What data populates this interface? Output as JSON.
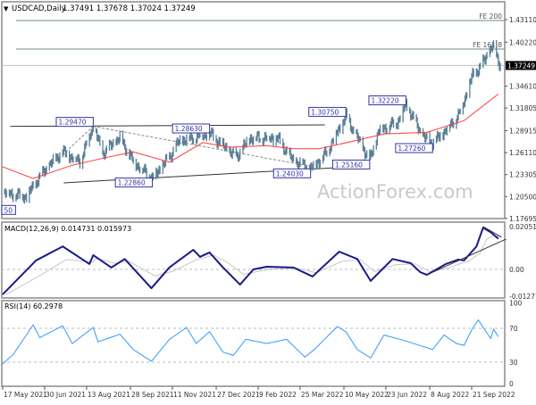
{
  "chart_data": [
    {
      "type": "ohlc",
      "panel": "price",
      "title": "USDCAD,Daily",
      "ohlc_readout": [
        "1.37491",
        "1.37678",
        "1.37024",
        "1.37249"
      ],
      "current_price": "1.37249",
      "yticks": [
        "1.43110",
        "1.40220",
        "1.34610",
        "1.31805",
        "1.28915",
        "1.26110",
        "1.23305",
        "1.20500",
        "1.17695"
      ],
      "ylim": [
        1.17695,
        1.4311
      ],
      "close_path": [
        [
          "2021-05-19",
          1.21
        ],
        [
          "2021-06-11",
          1.205
        ],
        [
          "2021-06-25",
          1.23
        ],
        [
          "2021-07-05",
          1.245
        ],
        [
          "2021-07-19",
          1.262
        ],
        [
          "2021-08-06",
          1.25
        ],
        [
          "2021-08-20",
          1.2947
        ],
        [
          "2021-08-30",
          1.26
        ],
        [
          "2021-09-17",
          1.28
        ],
        [
          "2021-10-01",
          1.25
        ],
        [
          "2021-10-21",
          1.2286
        ],
        [
          "2021-11-08",
          1.255
        ],
        [
          "2021-11-18",
          1.275
        ],
        [
          "2021-12-20",
          1.2863
        ],
        [
          "2022-01-03",
          1.27
        ],
        [
          "2022-01-17",
          1.255
        ],
        [
          "2022-02-01",
          1.28
        ],
        [
          "2022-03-01",
          1.28
        ],
        [
          "2022-03-18",
          1.25
        ],
        [
          "2022-04-05",
          1.2403
        ],
        [
          "2022-04-21",
          1.26
        ],
        [
          "2022-05-12",
          1.3075
        ],
        [
          "2022-05-24",
          1.28
        ],
        [
          "2022-06-06",
          1.2516
        ],
        [
          "2022-06-16",
          1.29
        ],
        [
          "2022-07-05",
          1.3
        ],
        [
          "2022-07-14",
          1.3222
        ],
        [
          "2022-08-02",
          1.28
        ],
        [
          "2022-08-11",
          1.2726
        ],
        [
          "2022-08-25",
          1.29
        ],
        [
          "2022-09-08",
          1.31
        ],
        [
          "2022-09-22",
          1.36
        ],
        [
          "2022-09-30",
          1.37
        ],
        [
          "2022-10-13",
          1.3975
        ],
        [
          "2022-10-21",
          1.3725
        ]
      ],
      "moving_average": [
        [
          "2021-05-17",
          1.243
        ],
        [
          "2021-06-18",
          1.228
        ],
        [
          "2021-07-29",
          1.245
        ],
        [
          "2021-09-03",
          1.255
        ],
        [
          "2021-10-01",
          1.262
        ],
        [
          "2021-11-08",
          1.249
        ],
        [
          "2021-12-13",
          1.274
        ],
        [
          "2022-01-10",
          1.268
        ],
        [
          "2022-02-18",
          1.27
        ],
        [
          "2022-03-18",
          1.266
        ],
        [
          "2022-04-14",
          1.266
        ],
        [
          "2022-05-24",
          1.277
        ],
        [
          "2022-06-21",
          1.285
        ],
        [
          "2022-08-05",
          1.287
        ],
        [
          "2022-09-13",
          1.302
        ],
        [
          "2022-10-19",
          1.336
        ]
      ],
      "annotations": [
        {
          "text": "1.29470",
          "date": "2021-08-20",
          "price": 1.2947,
          "pos": "above-left"
        },
        {
          "text": "1.28630",
          "date": "2021-12-20",
          "price": 1.2863,
          "pos": "above-left"
        },
        {
          "text": "1.22860",
          "date": "2021-10-21",
          "price": 1.2286,
          "pos": "below-left"
        },
        {
          "text": "1.24030",
          "date": "2022-04-05",
          "price": 1.2403,
          "pos": "below-left"
        },
        {
          "text": "1.30750",
          "date": "2022-05-12",
          "price": 1.3075,
          "pos": "above-left"
        },
        {
          "text": "1.25160",
          "date": "2022-06-06",
          "price": 1.2516,
          "pos": "below-left"
        },
        {
          "text": "1.32220",
          "date": "2022-07-14",
          "price": 1.3222,
          "pos": "above-left"
        },
        {
          "text": "1.27260",
          "date": "2022-08-11",
          "price": 1.2726,
          "pos": "below-left"
        },
        {
          "text": "50",
          "date": "2021-05-17",
          "price": 1.205,
          "pos": "edge"
        }
      ],
      "levels": [
        {
          "label": "FE 200",
          "price": 1.43
        },
        {
          "label": "FE 161.8",
          "price": 1.3935
        }
      ],
      "trendlines": [
        {
          "style": "solid",
          "from": [
            "2021-05-25",
            1.2947
          ],
          "to": [
            "2022-04-20",
            1.2965
          ]
        },
        {
          "style": "solid",
          "from": [
            "2021-07-20",
            1.2225
          ],
          "to": [
            "2022-04-30",
            1.2417
          ]
        },
        {
          "style": "dashed",
          "from": [
            "2021-07-22",
            1.262
          ],
          "to": [
            "2021-08-20",
            1.2947
          ]
        },
        {
          "style": "dashed",
          "from": [
            "2021-08-20",
            1.2947
          ],
          "to": [
            "2022-04-08",
            1.243
          ]
        }
      ],
      "watermark": "ActionForex.com"
    },
    {
      "type": "line",
      "panel": "macd",
      "title": "MACD(12,26,9) 0.014731 0.015973",
      "yticks": [
        "0.020518",
        "0.00",
        "-0.012771"
      ],
      "ylim": [
        -0.012771,
        0.020518
      ],
      "macd": [
        [
          "2021-05-17",
          -0.012
        ],
        [
          "2021-06-21",
          0.0043
        ],
        [
          "2021-07-19",
          0.011
        ],
        [
          "2021-08-16",
          0.0026
        ],
        [
          "2021-08-20",
          0.0068
        ],
        [
          "2021-09-08",
          0.0009
        ],
        [
          "2021-09-22",
          0.005
        ],
        [
          "2021-10-20",
          -0.009
        ],
        [
          "2021-11-08",
          0.001
        ],
        [
          "2021-12-03",
          0.0094
        ],
        [
          "2021-12-10",
          0.006
        ],
        [
          "2021-12-20",
          0.0081
        ],
        [
          "2022-01-03",
          0.001
        ],
        [
          "2022-01-21",
          -0.0073
        ],
        [
          "2022-02-04",
          0.0
        ],
        [
          "2022-02-18",
          0.0013
        ],
        [
          "2022-03-18",
          0.0009
        ],
        [
          "2022-04-07",
          -0.0034
        ],
        [
          "2022-05-05",
          0.0085
        ],
        [
          "2022-05-24",
          0.005
        ],
        [
          "2022-06-07",
          -0.0055
        ],
        [
          "2022-06-30",
          0.005
        ],
        [
          "2022-07-19",
          0.003
        ],
        [
          "2022-07-29",
          -0.0013
        ],
        [
          "2022-08-05",
          -0.0026
        ],
        [
          "2022-08-25",
          0.0026
        ],
        [
          "2022-09-07",
          0.0047
        ],
        [
          "2022-09-13",
          0.0043
        ],
        [
          "2022-09-26",
          0.011
        ],
        [
          "2022-10-03",
          0.02
        ],
        [
          "2022-10-11",
          0.0178
        ],
        [
          "2022-10-19",
          0.0147
        ]
      ],
      "trendlines": [
        {
          "from": [
            "2022-08-05",
            -0.0026
          ],
          "to": [
            "2022-10-27",
            0.0145
          ]
        },
        {
          "from": [
            "2022-10-03",
            0.0205
          ],
          "to": [
            "2022-10-22",
            0.0155
          ]
        }
      ]
    },
    {
      "type": "line",
      "panel": "rsi",
      "title": "RSI(14) 60.2978",
      "yticks": [
        "100",
        "70",
        "30",
        "0"
      ],
      "ylim": [
        0,
        100
      ],
      "levels": [
        70,
        30
      ],
      "rsi": [
        [
          "2021-05-17",
          28
        ],
        [
          "2021-05-28",
          39
        ],
        [
          "2021-06-18",
          74
        ],
        [
          "2021-06-25",
          59
        ],
        [
          "2021-07-19",
          73
        ],
        [
          "2021-07-29",
          52
        ],
        [
          "2021-08-20",
          71
        ],
        [
          "2021-08-25",
          54
        ],
        [
          "2021-09-17",
          63
        ],
        [
          "2021-10-01",
          45
        ],
        [
          "2021-10-20",
          31
        ],
        [
          "2021-11-08",
          57
        ],
        [
          "2021-11-26",
          71
        ],
        [
          "2021-12-06",
          52
        ],
        [
          "2021-12-20",
          66
        ],
        [
          "2022-01-03",
          42
        ],
        [
          "2022-01-14",
          38
        ],
        [
          "2022-01-27",
          57
        ],
        [
          "2022-02-18",
          52
        ],
        [
          "2022-03-11",
          57
        ],
        [
          "2022-03-30",
          36
        ],
        [
          "2022-04-08",
          44
        ],
        [
          "2022-05-03",
          72
        ],
        [
          "2022-05-12",
          66
        ],
        [
          "2022-05-24",
          45
        ],
        [
          "2022-06-07",
          35
        ],
        [
          "2022-06-21",
          62
        ],
        [
          "2022-07-11",
          56
        ],
        [
          "2022-07-25",
          51
        ],
        [
          "2022-08-11",
          45
        ],
        [
          "2022-08-23",
          62
        ],
        [
          "2022-09-05",
          52
        ],
        [
          "2022-09-13",
          50
        ],
        [
          "2022-09-21",
          68
        ],
        [
          "2022-09-28",
          80
        ],
        [
          "2022-10-03",
          71
        ],
        [
          "2022-10-11",
          58
        ],
        [
          "2022-10-14",
          69
        ],
        [
          "2022-10-19",
          60
        ]
      ]
    }
  ],
  "xaxis": {
    "ticks": [
      {
        "label": "17 May 2021",
        "date": "2021-05-17"
      },
      {
        "label": "30 Jun 2021",
        "date": "2021-06-30"
      },
      {
        "label": "13 Aug 2021",
        "date": "2021-08-13"
      },
      {
        "label": "28 Sep 2021",
        "date": "2021-09-28"
      },
      {
        "label": "11 Nov 2021",
        "date": "2021-11-11"
      },
      {
        "label": "27 Dec 2021",
        "date": "2021-12-27"
      },
      {
        "label": "9 Feb 2022",
        "date": "2022-02-09"
      },
      {
        "label": "25 Mar 2022",
        "date": "2022-03-25"
      },
      {
        "label": "10 May 2022",
        "date": "2022-05-10"
      },
      {
        "label": "23 Jun 2022",
        "date": "2022-06-23"
      },
      {
        "label": "8 Aug 2022",
        "date": "2022-08-08"
      },
      {
        "label": "21 Sep 2022",
        "date": "2022-09-21"
      }
    ]
  },
  "colors": {
    "bars": "#5b7f95",
    "moving_average": "#ff3b3b",
    "macd": "#1a1a8c",
    "signal": "#c8c8c8",
    "rsi": "#3399ff",
    "annotation": "#3333aa",
    "levels": "#6e8a8e"
  }
}
